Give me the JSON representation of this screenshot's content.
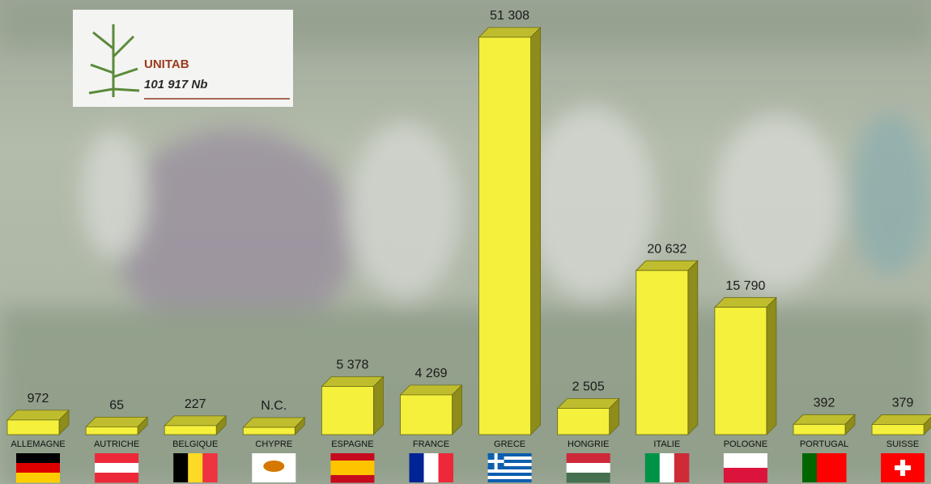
{
  "chart_data": {
    "type": "bar3d",
    "legend_box": {
      "title": "UNITAB",
      "total": "101 917 Nb"
    },
    "categories": [
      "ALLEMAGNE",
      "AUTRICHE",
      "BELGIQUE",
      "CHYPRE",
      "ESPAGNE",
      "FRANCE",
      "GRECE",
      "HONGRIE",
      "ITALIE",
      "POLOGNE",
      "PORTUGAL",
      "SUISSE"
    ],
    "values": [
      972,
      65,
      227,
      null,
      5378,
      4269,
      51308,
      2505,
      20632,
      15790,
      392,
      379
    ],
    "value_labels": [
      "972",
      "65",
      "227",
      "N.C.",
      "5 378",
      "4 269",
      "51 308",
      "2 505",
      "20 632",
      "15 790",
      "392",
      "379"
    ],
    "color": "#f4f03c",
    "ylim": [
      0,
      51308
    ]
  }
}
